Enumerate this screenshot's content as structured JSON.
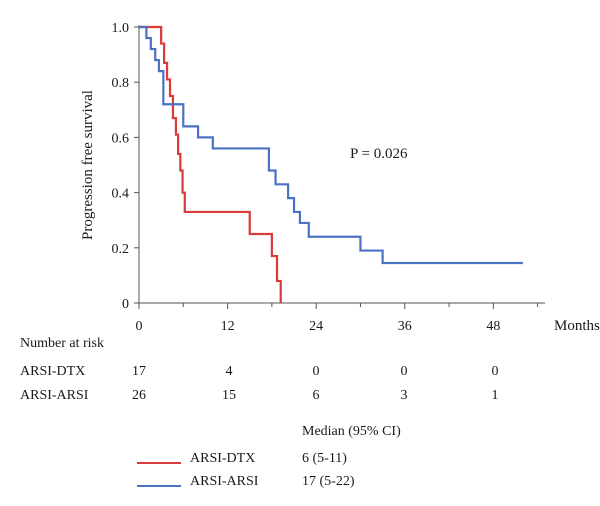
{
  "chart_data": {
    "type": "line",
    "xlabel": "Months",
    "ylabel": "Progression free survival",
    "xlim": [
      0,
      55
    ],
    "ylim": [
      0,
      1.0
    ],
    "x_ticks": [
      0,
      12,
      24,
      36,
      48
    ],
    "x_tick_labels": [
      "0",
      "12",
      "24",
      "36",
      "48"
    ],
    "y_ticks": [
      0,
      0.2,
      0.4,
      0.6,
      0.8,
      1.0
    ],
    "y_tick_labels": [
      "0",
      "0.2",
      "0.4",
      "0.6",
      "0.8",
      "1.0"
    ],
    "grid": false,
    "annotation": "P = 0.026",
    "series": [
      {
        "name": "ARSI-DTX",
        "color": "#d93a3a",
        "x": [
          0,
          3,
          3.4,
          3.8,
          4.2,
          4.6,
          5,
          5.3,
          5.6,
          5.9,
          6.2,
          10,
          15,
          18,
          18.7,
          19.2
        ],
        "y": [
          1.0,
          0.94,
          0.87,
          0.81,
          0.75,
          0.67,
          0.61,
          0.54,
          0.48,
          0.4,
          0.33,
          0.33,
          0.25,
          0.17,
          0.08,
          0.0
        ]
      },
      {
        "name": "ARSI-ARSI",
        "color": "#4a72c4",
        "x": [
          0,
          1,
          1.6,
          2.2,
          2.7,
          3.3,
          5.5,
          6,
          8,
          10,
          17,
          17.6,
          18.5,
          20.2,
          21,
          21.8,
          23,
          30,
          33,
          52
        ],
        "y": [
          1.0,
          0.96,
          0.92,
          0.88,
          0.84,
          0.72,
          0.72,
          0.64,
          0.6,
          0.56,
          0.56,
          0.48,
          0.43,
          0.38,
          0.33,
          0.29,
          0.24,
          0.19,
          0.145,
          0.145
        ]
      }
    ]
  },
  "risk_table": {
    "title": "Number at risk",
    "rows": [
      {
        "label": "ARSI-DTX",
        "values": [
          "17",
          "4",
          "0",
          "0",
          "0"
        ]
      },
      {
        "label": "ARSI-ARSI",
        "values": [
          "26",
          "15",
          "6",
          "3",
          "1"
        ]
      }
    ]
  },
  "legend": {
    "header": "Median (95% CI)",
    "items": [
      {
        "label": "ARSI-DTX",
        "median": "6 (5-11)",
        "color": "#d93a3a"
      },
      {
        "label": "ARSI-ARSI",
        "median": "17 (5-22)",
        "color": "#4a72c4"
      }
    ]
  }
}
